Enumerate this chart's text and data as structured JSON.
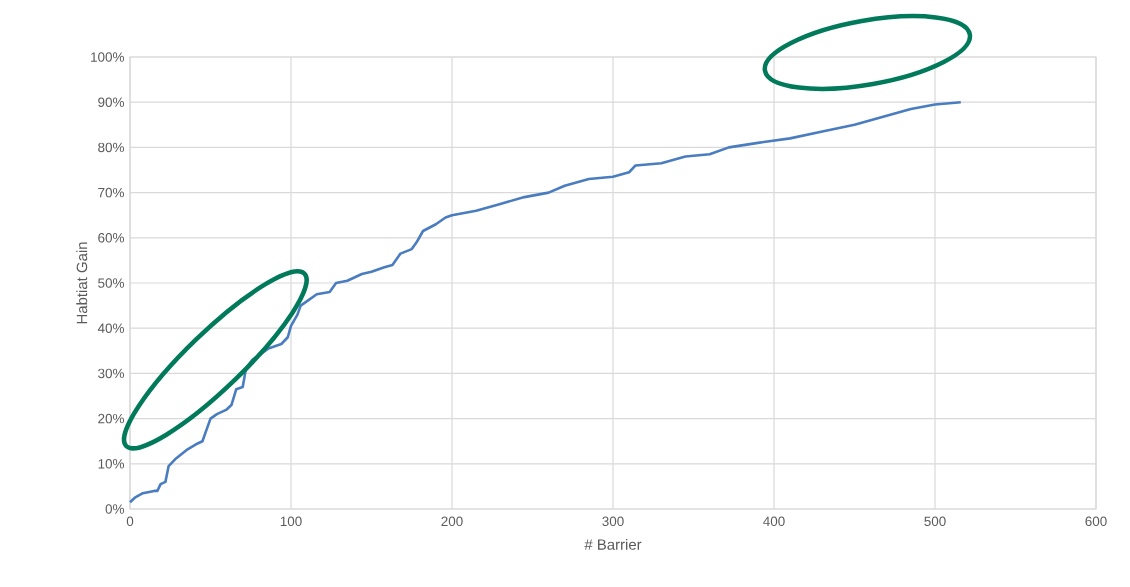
{
  "chart_data": {
    "type": "line",
    "xlabel": "# Barrier",
    "ylabel": "Habtiat Gain",
    "x": [
      0,
      3,
      8,
      15,
      17,
      19,
      22,
      24,
      28,
      35,
      42,
      45,
      47,
      50,
      54,
      60,
      63,
      66,
      70,
      72,
      76,
      80,
      86,
      94,
      98,
      100,
      104,
      106,
      110,
      116,
      124,
      128,
      135,
      144,
      150,
      158,
      163,
      168,
      175,
      178,
      182,
      190,
      196,
      200,
      215,
      230,
      245,
      260,
      270,
      285,
      300,
      310,
      314,
      330,
      345,
      360,
      372,
      390,
      410,
      430,
      450,
      470,
      485,
      500,
      516
    ],
    "series": [
      {
        "color": "#4a7cc0",
        "values": [
          1.5,
          2.5,
          3.5,
          4,
          4,
          5.5,
          6,
          9.5,
          11,
          13,
          14.5,
          15,
          17,
          20,
          21,
          22,
          23,
          26.5,
          27,
          31,
          33,
          34,
          35.5,
          36.5,
          38,
          40.5,
          43,
          45,
          46,
          47.5,
          48,
          50,
          50.5,
          52,
          52.5,
          53.5,
          54,
          56.5,
          57.5,
          59,
          61.5,
          63,
          64.5,
          65,
          66,
          67.5,
          69,
          70,
          71.5,
          73,
          73.5,
          74.5,
          76,
          76.5,
          78,
          78.5,
          80,
          81,
          82,
          83.5,
          85,
          87,
          88.5,
          89.5,
          90
        ]
      }
    ],
    "xlim": [
      0,
      600
    ],
    "xticks": [
      0,
      100,
      200,
      300,
      400,
      500,
      600
    ],
    "ylim": [
      0,
      100
    ],
    "yticks": [
      {
        "value": 0,
        "label": "0%"
      },
      {
        "value": 10,
        "label": "10%"
      },
      {
        "value": 20,
        "label": "20%"
      },
      {
        "value": 30,
        "label": "30%"
      },
      {
        "value": 40,
        "label": "40%"
      },
      {
        "value": 50,
        "label": "50%"
      },
      {
        "value": 60,
        "label": "60%"
      },
      {
        "value": 70,
        "label": "70%"
      },
      {
        "value": 80,
        "label": "80%"
      },
      {
        "value": 90,
        "label": "90%"
      },
      {
        "value": 100,
        "label": "100%"
      }
    ],
    "grid": true,
    "marker": "none",
    "line_style": "solid"
  }
}
